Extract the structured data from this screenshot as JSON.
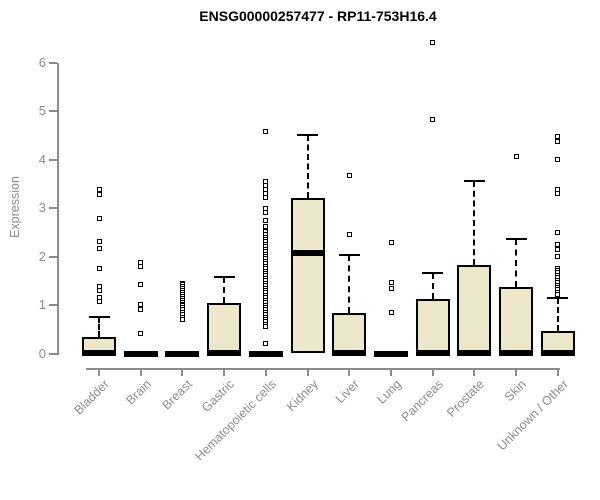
{
  "title": "ENSG00000000257477_placeholder",
  "chart_data": {
    "type": "boxplot",
    "title": "ENSG00000257477 - RP11-753H16.4",
    "ylabel": "Expression",
    "xlabel": "",
    "ylim": [
      0,
      6.5
    ],
    "yticks": [
      0,
      1,
      2,
      3,
      4,
      5,
      6
    ],
    "grid": false,
    "legend": "none",
    "box_fill": "#ECE7CB",
    "box_border": "#000000",
    "axis_color": "#8c8c8c",
    "title_color": "#000000",
    "categories": [
      "Bladder",
      "Brain",
      "Breast",
      "Gastric",
      "Hematopoietic cells",
      "Kidney",
      "Liver",
      "Lung",
      "Pancreas",
      "Prostate",
      "Skin",
      "Unknown / Other"
    ],
    "series": [
      {
        "name": "Bladder",
        "q1": 0,
        "median": 0.02,
        "q3": 0.33,
        "whisker_low": 0,
        "whisker_high": 0.75,
        "outliers": [
          3.38,
          3.27,
          2.79,
          2.31,
          2.16,
          1.76,
          1.38,
          1.29,
          1.16,
          1.07
        ]
      },
      {
        "name": "Brain",
        "q1": 0,
        "median": 0,
        "q3": 0.02,
        "whisker_low": 0,
        "whisker_high": 0.02,
        "outliers": [
          1.88,
          1.8,
          1.42,
          1.02,
          0.9,
          0.42
        ]
      },
      {
        "name": "Breast",
        "q1": 0,
        "median": 0,
        "q3": 0.02,
        "whisker_low": 0,
        "whisker_high": 0.02,
        "outliers": [
          1.45,
          1.42,
          1.38,
          1.34,
          1.3,
          1.26,
          1.22,
          1.18,
          1.14,
          1.1,
          1.06,
          1.02,
          0.98,
          0.94,
          0.9,
          0.85,
          0.8,
          0.75,
          0.7
        ]
      },
      {
        "name": "Gastric",
        "q1": 0,
        "median": 0.02,
        "q3": 1.04,
        "whisker_low": 0,
        "whisker_high": 1.58,
        "outliers": []
      },
      {
        "name": "Hematopoietic cells",
        "q1": 0,
        "median": 0,
        "q3": 0.02,
        "whisker_low": 0,
        "whisker_high": 0.02,
        "outliers": [
          4.57,
          3.54,
          3.47,
          3.38,
          3.3,
          3.22,
          2.98,
          2.9,
          2.75,
          2.62,
          2.52,
          2.45,
          2.4,
          2.35,
          2.3,
          2.25,
          2.2,
          2.15,
          2.1,
          2.05,
          2.0,
          1.95,
          1.9,
          1.85,
          1.8,
          1.75,
          1.7,
          1.65,
          1.6,
          1.55,
          1.5,
          1.45,
          1.4,
          1.35,
          1.3,
          1.25,
          1.2,
          1.15,
          1.1,
          1.05,
          1.0,
          0.95,
          0.9,
          0.85,
          0.8,
          0.75,
          0.7,
          0.65,
          0.6,
          0.55,
          0.2
        ]
      },
      {
        "name": "Kidney",
        "q1": 0,
        "median": 2.07,
        "q3": 3.21,
        "whisker_low": 0,
        "whisker_high": 4.51,
        "outliers": []
      },
      {
        "name": "Liver",
        "q1": 0,
        "median": 0.02,
        "q3": 0.83,
        "whisker_low": 0,
        "whisker_high": 2.03,
        "outliers": [
          3.66,
          2.46
        ]
      },
      {
        "name": "Lung",
        "q1": 0,
        "median": 0,
        "q3": 0.02,
        "whisker_low": 0,
        "whisker_high": 0.02,
        "outliers": [
          2.28,
          1.46,
          1.35,
          0.84
        ]
      },
      {
        "name": "Pancreas",
        "q1": 0,
        "median": 0.02,
        "q3": 1.12,
        "whisker_low": 0,
        "whisker_high": 1.65,
        "outliers": [
          6.41,
          4.83
        ]
      },
      {
        "name": "Prostate",
        "q1": 0,
        "median": 0.02,
        "q3": 1.82,
        "whisker_low": 0,
        "whisker_high": 3.56,
        "outliers": []
      },
      {
        "name": "Skin",
        "q1": 0,
        "median": 0.02,
        "q3": 1.38,
        "whisker_low": 0,
        "whisker_high": 2.37,
        "outliers": [
          4.07
        ]
      },
      {
        "name": "Unknown / Other",
        "q1": 0,
        "median": 0.02,
        "q3": 0.46,
        "whisker_low": 0,
        "whisker_high": 1.15,
        "outliers": [
          4.47,
          4.38,
          4.0,
          3.38,
          3.3,
          2.49,
          2.24,
          2.14,
          2.01,
          1.76,
          1.71,
          1.66,
          1.61,
          1.56,
          1.51,
          1.46,
          1.41,
          1.36,
          1.31,
          1.26,
          1.22
        ]
      }
    ]
  }
}
